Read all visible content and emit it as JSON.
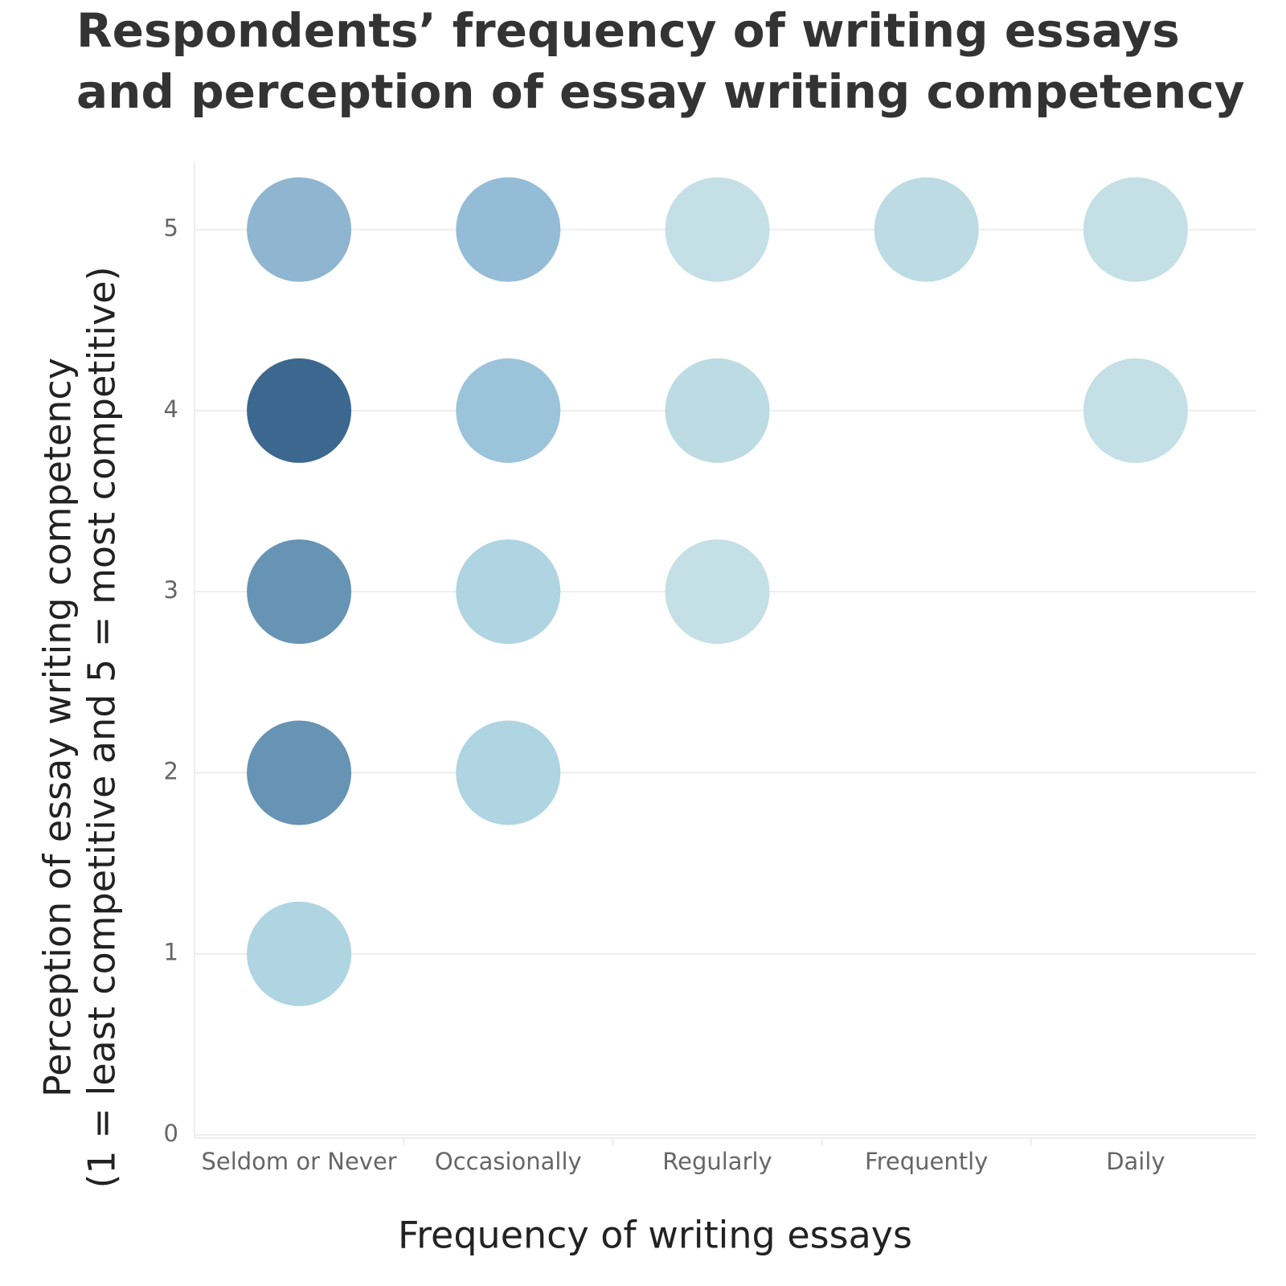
{
  "chart_data": {
    "type": "scatter",
    "title": "Respondents’ frequency of writing essays and perception of essay writing competency",
    "x_label": "Frequency of writing essays",
    "y_label": [
      "Perception of essay writing competency",
      "(1 = least competitive and 5 = most competitive)"
    ],
    "categories": [
      "Seldom or Never",
      "Occasionally",
      "Regularly",
      "Frequently",
      "Daily"
    ],
    "ylim": [
      0,
      5.38
    ],
    "yticks": [
      0,
      1,
      2,
      3,
      4,
      5
    ],
    "grid": true,
    "points": [
      {
        "x": "Seldom or Never",
        "y": 5,
        "color": "#8fb5d0"
      },
      {
        "x": "Seldom or Never",
        "y": 4,
        "color": "#3c688f"
      },
      {
        "x": "Seldom or Never",
        "y": 3,
        "color": "#6793b5"
      },
      {
        "x": "Seldom or Never",
        "y": 2,
        "color": "#6793b5"
      },
      {
        "x": "Seldom or Never",
        "y": 1,
        "color": "#afd4e2"
      },
      {
        "x": "Occasionally",
        "y": 5,
        "color": "#94bcd6"
      },
      {
        "x": "Occasionally",
        "y": 4,
        "color": "#9bc4db"
      },
      {
        "x": "Occasionally",
        "y": 3,
        "color": "#afd4e2"
      },
      {
        "x": "Occasionally",
        "y": 2,
        "color": "#afd4e2"
      },
      {
        "x": "Regularly",
        "y": 5,
        "color": "#c4dfe6"
      },
      {
        "x": "Regularly",
        "y": 4,
        "color": "#bcdbe3"
      },
      {
        "x": "Regularly",
        "y": 3,
        "color": "#c4dfe6"
      },
      {
        "x": "Frequently",
        "y": 5,
        "color": "#bcdbe3"
      },
      {
        "x": "Daily",
        "y": 5,
        "color": "#c4dfe6"
      },
      {
        "x": "Daily",
        "y": 4,
        "color": "#c4dfe6"
      }
    ]
  }
}
